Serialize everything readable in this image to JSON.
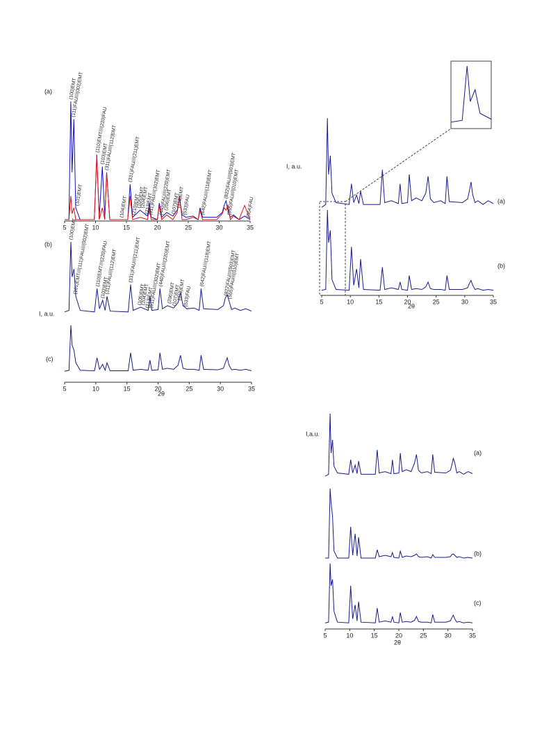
{
  "chart_data": [
    {
      "type": "line",
      "xlim": [
        5,
        35
      ],
      "xticks": [
        5,
        10,
        15,
        20,
        25,
        30,
        35
      ],
      "ylim": [
        0,
        100
      ],
      "x": [
        5,
        5.7,
        6.0,
        6.2,
        6.5,
        6.8,
        7.5,
        9.8,
        10.2,
        10.6,
        11.1,
        11.5,
        11.8,
        12.3,
        15.2,
        15.6,
        16.0,
        17.2,
        18.4,
        18.7,
        19.0,
        20.0,
        20.3,
        20.7,
        21.5,
        22.5,
        23.2,
        23.6,
        24.0,
        24.6,
        25.8,
        26.6,
        26.9,
        27.3,
        29.6,
        30.5,
        30.8,
        31.1,
        31.4,
        31.8,
        32.3,
        33.2,
        34.1,
        35
      ],
      "series": [
        {
          "name": "(a)",
          "color": "#1010c8",
          "values": [
            0,
            0,
            100,
            40,
            85,
            10,
            0,
            0,
            55,
            2,
            45,
            2,
            40,
            0,
            0,
            30,
            2,
            8,
            3,
            14,
            2,
            0,
            14,
            2,
            6,
            3,
            8,
            18,
            4,
            2,
            3,
            0,
            10,
            2,
            2,
            6,
            12,
            16,
            8,
            2,
            4,
            0,
            3,
            0
          ]
        },
        {
          "color": "#e01010",
          "values": [
            0,
            0,
            20,
            5,
            10,
            0,
            0,
            0,
            55,
            0,
            10,
            0,
            40,
            0,
            0,
            20,
            0,
            2,
            0,
            10,
            0,
            0,
            12,
            0,
            4,
            0,
            6,
            20,
            0,
            0,
            2,
            0,
            8,
            0,
            0,
            5,
            10,
            8,
            12,
            0,
            3,
            0,
            12,
            0
          ]
        }
      ],
      "annotations": [
        "(100)EMT",
        "(111)FAU///(002)EMT",
        "(101)EMT",
        "(110)EMT///(220)FAU",
        "(103)EMT",
        "(311)FAU///(112)EMT",
        "(331)FAU///(211)EMT",
        "(104)EMT",
        "(210)EMT",
        "(105)EMT",
        "(204)EMT",
        "(213)EMT",
        "(511)FAU///(302)EMT",
        "(440)FAU///(220)EMT",
        "(206)EMT",
        "(107)EMT",
        "(313)EMT",
        "(533)FAU",
        "(642)FAU///(118)EMT",
        "(822)FAU///(503)EMT",
        "(555)FAU///(010)EMT",
        "(664)FAU"
      ]
    },
    {
      "type": "line",
      "xlim": [
        5,
        35
      ],
      "xticks": [
        5,
        10,
        15,
        20,
        25,
        30,
        35
      ],
      "ylim": [
        0,
        100
      ],
      "xlabel": "2θ",
      "ylabel": "I, a.u.",
      "x": [
        5,
        5.7,
        6.0,
        6.2,
        6.5,
        6.8,
        7.5,
        9.8,
        10.2,
        10.6,
        11.1,
        11.5,
        11.8,
        12.3,
        15.2,
        15.6,
        16.0,
        17.2,
        18.4,
        18.7,
        19.0,
        20.0,
        20.3,
        20.7,
        21.5,
        22.5,
        23.2,
        23.6,
        24.0,
        24.6,
        25.8,
        26.6,
        26.9,
        27.3,
        29.6,
        30.5,
        30.8,
        31.1,
        31.4,
        31.8,
        32.3,
        33.2,
        34.1,
        35
      ],
      "series": [
        {
          "name": "(b)",
          "color": "#1a1a8c",
          "values": [
            10,
            12,
            100,
            55,
            65,
            30,
            12,
            10,
            40,
            14,
            25,
            12,
            30,
            11,
            10,
            45,
            12,
            16,
            12,
            30,
            12,
            13,
            40,
            14,
            18,
            15,
            22,
            35,
            18,
            14,
            15,
            12,
            40,
            14,
            13,
            18,
            28,
            32,
            24,
            13,
            15,
            12,
            14,
            11
          ]
        },
        {
          "name": "(c)",
          "color": "#1a1a8c",
          "values": [
            8,
            10,
            100,
            60,
            50,
            25,
            10,
            9,
            35,
            12,
            22,
            10,
            25,
            9,
            9,
            45,
            10,
            12,
            10,
            30,
            10,
            11,
            45,
            12,
            14,
            12,
            20,
            40,
            14,
            12,
            12,
            10,
            40,
            12,
            11,
            14,
            25,
            35,
            20,
            11,
            12,
            10,
            12,
            9
          ]
        }
      ],
      "annotations": [
        "(100)EMT",
        "(101)EMT///(111)FAU///(002)EMT",
        "(110)EMT///(220)FAU",
        "(103)EMT",
        "(311)FAU///(112)EMT",
        "(331)FAU///(211)EMT",
        "(105)EMT",
        "(204)EMT",
        "(213)EMT",
        "(511)FAU///(302)EMT",
        "(440)FAU///(220)EMT",
        "(206)EMT",
        "(107)EMT",
        "(313)EMT",
        "(533)FAU",
        "(642)FAU///(118)EMT",
        "(822)FAU///(503)EMT",
        "(555)FAU///(010)EMT"
      ]
    },
    {
      "type": "line",
      "xlim": [
        5,
        35
      ],
      "xticks": [
        5,
        10,
        15,
        20,
        25,
        30,
        35
      ],
      "ylim": [
        0,
        100
      ],
      "xlabel": "2θ",
      "ylabel": "I, a.u.",
      "x": [
        5,
        5.7,
        6.0,
        6.2,
        6.5,
        6.8,
        7.5,
        9.8,
        10.2,
        10.6,
        11.1,
        11.5,
        11.8,
        12.3,
        15.2,
        15.6,
        16.0,
        17.2,
        18.4,
        18.7,
        19.0,
        20.0,
        20.3,
        20.7,
        21.5,
        22.5,
        23.2,
        23.6,
        24.0,
        24.6,
        25.8,
        26.6,
        26.9,
        27.3,
        29.6,
        30.5,
        30.8,
        31.1,
        31.4,
        31.8,
        32.3,
        33.2,
        34.1,
        35
      ],
      "series": [
        {
          "name": "(a)",
          "color": "#1a1a8c",
          "values": [
            5,
            8,
            100,
            40,
            60,
            20,
            10,
            8,
            30,
            10,
            18,
            9,
            22,
            8,
            8,
            45,
            10,
            12,
            9,
            30,
            9,
            10,
            40,
            12,
            15,
            12,
            20,
            38,
            14,
            10,
            12,
            9,
            38,
            11,
            10,
            14,
            22,
            32,
            18,
            10,
            12,
            8,
            12,
            9
          ]
        },
        {
          "name": "(b)",
          "color": "#1a1a8c",
          "values": [
            2,
            3,
            100,
            60,
            75,
            15,
            3,
            2,
            55,
            8,
            28,
            5,
            40,
            3,
            2,
            30,
            3,
            5,
            3,
            12,
            3,
            2,
            20,
            3,
            4,
            3,
            6,
            12,
            4,
            3,
            3,
            2,
            20,
            3,
            3,
            5,
            10,
            14,
            8,
            3,
            4,
            2,
            3,
            2
          ]
        }
      ]
    },
    {
      "type": "line",
      "xlim": [
        5,
        35
      ],
      "xticks": [
        5,
        10,
        15,
        20,
        25,
        30,
        35
      ],
      "ylim": [
        0,
        100
      ],
      "xlabel": "2θ",
      "ylabel": "I,a.u.",
      "x": [
        5,
        5.7,
        6.0,
        6.2,
        6.5,
        6.8,
        7.5,
        9.8,
        10.2,
        10.6,
        11.1,
        11.5,
        11.8,
        12.3,
        15.2,
        15.6,
        16.0,
        17.2,
        18.4,
        18.7,
        19.0,
        20.0,
        20.3,
        20.7,
        21.5,
        22.5,
        23.2,
        23.6,
        24.0,
        24.6,
        25.8,
        26.6,
        26.9,
        27.3,
        29.6,
        30.5,
        30.8,
        31.1,
        31.4,
        31.8,
        32.3,
        33.2,
        34.1,
        35
      ],
      "series": [
        {
          "name": "(a)",
          "color": "#1a1a8c",
          "values": [
            5,
            8,
            100,
            40,
            60,
            20,
            10,
            8,
            30,
            10,
            22,
            9,
            28,
            8,
            8,
            45,
            10,
            12,
            9,
            30,
            9,
            10,
            40,
            12,
            15,
            12,
            25,
            38,
            14,
            10,
            12,
            9,
            38,
            11,
            10,
            14,
            22,
            32,
            25,
            10,
            12,
            8,
            12,
            9
          ]
        },
        {
          "name": "(b)",
          "color": "#1a1a8c",
          "values": [
            0,
            0,
            100,
            80,
            60,
            10,
            0,
            0,
            45,
            4,
            35,
            3,
            30,
            0,
            0,
            12,
            2,
            4,
            2,
            8,
            1,
            0,
            10,
            1,
            3,
            2,
            4,
            6,
            2,
            1,
            2,
            0,
            5,
            1,
            1,
            2,
            5,
            6,
            4,
            1,
            2,
            0,
            1,
            0
          ]
        },
        {
          "name": "(c)",
          "color": "#1a1a8c",
          "values": [
            2,
            3,
            95,
            60,
            70,
            20,
            3,
            2,
            60,
            8,
            30,
            5,
            35,
            3,
            2,
            25,
            3,
            5,
            3,
            12,
            3,
            2,
            18,
            3,
            4,
            3,
            6,
            12,
            4,
            3,
            3,
            2,
            15,
            3,
            3,
            5,
            10,
            14,
            8,
            3,
            4,
            2,
            3,
            2
          ]
        }
      ]
    }
  ]
}
